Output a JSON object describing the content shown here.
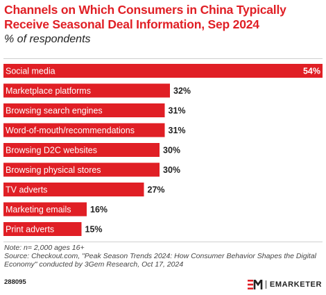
{
  "header": {
    "title": "Channels on Which Consumers in China Typically Receive Seasonal Deal Information, Sep 2024",
    "subtitle": "% of respondents"
  },
  "footer": {
    "note_line1": "Note: n= 2,000 ages 16+",
    "note_line2": "Source: Checkout.com, \"Peak Season Trends 2024: How Consumer Behavior Shapes the Digital Economy\" conducted by 3Gem Research, Oct 17, 2024",
    "chart_id": "288095",
    "brand": "EMARKETER"
  },
  "colors": {
    "accent": "#e01f25",
    "bar": "#e01f25",
    "bar_label": "#ffffff",
    "value_label": "#222222"
  },
  "chart_data": {
    "type": "bar",
    "orientation": "horizontal",
    "categories": [
      "Social media",
      "Marketplace platforms",
      "Browsing search engines",
      "Word-of-mouth/recommendations",
      "Browsing D2C websites",
      "Browsing physical stores",
      "TV adverts",
      "Marketing emails",
      "Print adverts"
    ],
    "values": [
      54,
      32,
      31,
      31,
      30,
      30,
      27,
      16,
      15
    ],
    "value_labels": [
      "54%",
      "32%",
      "31%",
      "31%",
      "30%",
      "30%",
      "27%",
      "16%",
      "15%"
    ],
    "xlim": [
      0,
      54
    ],
    "grid": false,
    "legend": "none"
  }
}
